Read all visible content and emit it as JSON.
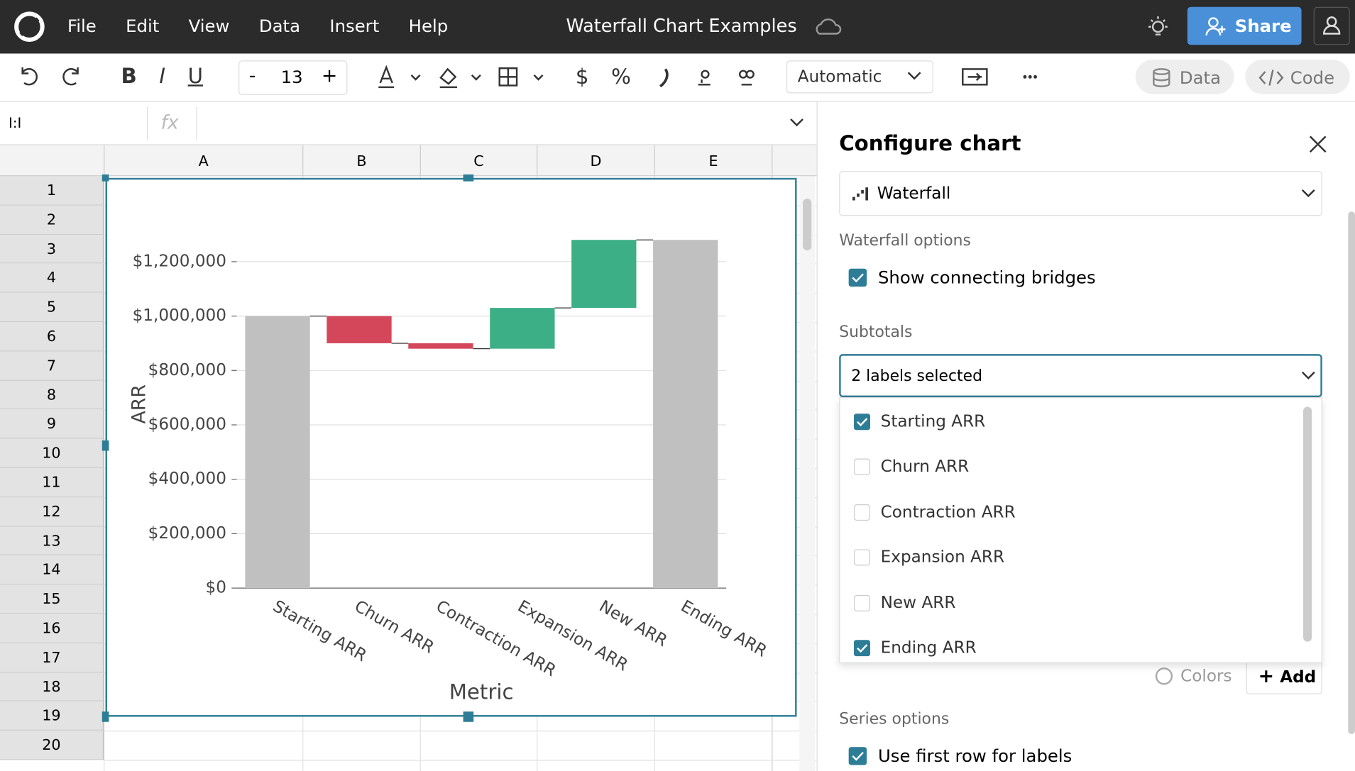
{
  "app": {
    "menu": [
      "File",
      "Edit",
      "View",
      "Data",
      "Insert",
      "Help"
    ],
    "title": "Waterfall Chart Examples",
    "share": "Share"
  },
  "toolbar": {
    "format_buttons": [
      "B",
      "I",
      "U"
    ],
    "font_size": "13",
    "minus": "-",
    "plus": "+",
    "number_buttons": [
      "$",
      "%"
    ],
    "number_format": "Automatic",
    "data": "Data",
    "code": "Code"
  },
  "formula_bar": {
    "cell_ref": "I:I",
    "fx": "fx"
  },
  "sheet": {
    "columns": [
      "A",
      "B",
      "C",
      "D",
      "E"
    ],
    "rows": [
      1,
      2,
      3,
      4,
      5,
      6,
      7,
      8,
      9,
      10,
      11,
      12,
      13,
      14,
      15,
      16,
      17,
      18,
      19,
      20
    ]
  },
  "panel": {
    "title": "Configure chart",
    "chart_type": "Waterfall",
    "waterfall_options": "Waterfall options",
    "bridges": {
      "label": "Show connecting bridges",
      "checked": true
    },
    "subtotals": "Subtotals",
    "subtotals_select": "2 labels selected",
    "options": [
      {
        "label": "Starting ARR",
        "checked": true
      },
      {
        "label": "Churn ARR",
        "checked": false
      },
      {
        "label": "Contraction ARR",
        "checked": false
      },
      {
        "label": "Expansion ARR",
        "checked": false
      },
      {
        "label": "New ARR",
        "checked": false
      },
      {
        "label": "Ending ARR",
        "checked": true
      }
    ],
    "colors": "Colors",
    "add": "Add",
    "series_options": "Series options",
    "first_row": {
      "label": "Use first row for labels",
      "checked": true
    }
  },
  "chart_data": {
    "type": "waterfall",
    "y_label": "ARR",
    "x_label": "Metric",
    "categories": [
      "Starting ARR",
      "Churn ARR",
      "Contraction ARR",
      "Expansion ARR",
      "New ARR",
      "Ending ARR"
    ],
    "values": [
      1000000,
      -100000,
      -20000,
      150000,
      250000,
      1280000
    ],
    "subtotal": [
      true,
      false,
      false,
      false,
      false,
      true
    ],
    "colors": {
      "total": "#c0c0c0",
      "increase": "#3daf86",
      "decrease": "#d4475a"
    },
    "bridges": true,
    "grid": true,
    "ylim": [
      0,
      1300000
    ],
    "yticks": [
      {
        "value": 0,
        "label": "$0"
      },
      {
        "value": 200000,
        "label": "$200,000"
      },
      {
        "value": 400000,
        "label": "$400,000"
      },
      {
        "value": 600000,
        "label": "$600,000"
      },
      {
        "value": 800000,
        "label": "$800,000"
      },
      {
        "value": 1000000,
        "label": "$1,000,000"
      },
      {
        "value": 1200000,
        "label": "$1,200,000"
      }
    ]
  }
}
